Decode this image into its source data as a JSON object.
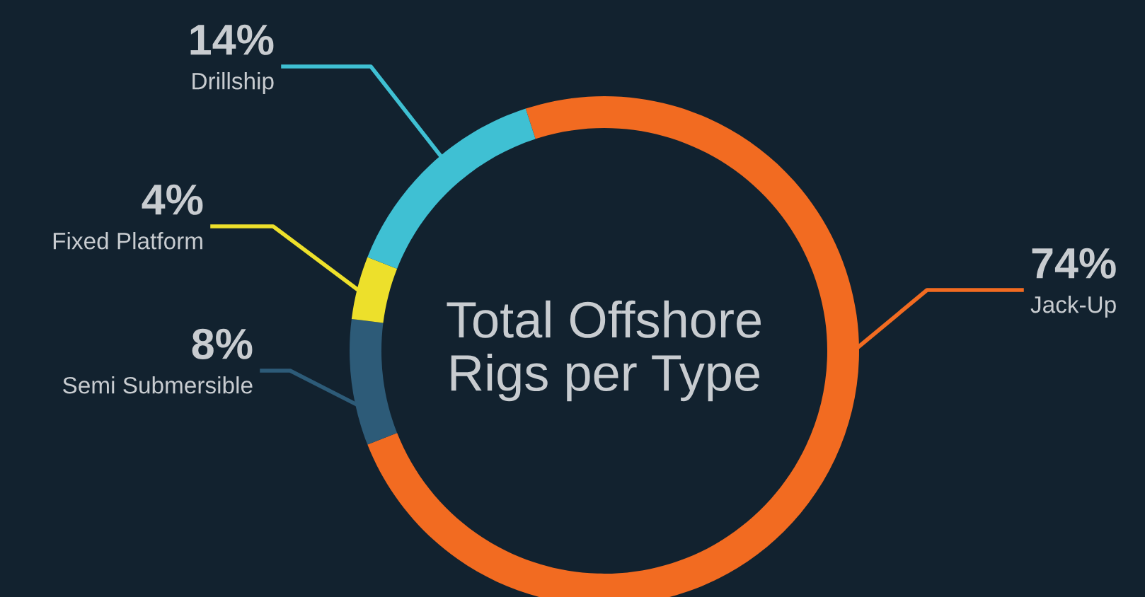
{
  "chart_data": {
    "type": "donut",
    "title": "Total Offshore Rigs per Type",
    "categories": [
      "Jack-Up",
      "Semi Submersible",
      "Fixed Platform",
      "Drillship"
    ],
    "values": [
      74,
      8,
      4,
      14
    ],
    "colors": [
      "#f26b21",
      "#2d5b78",
      "#ede02b",
      "#3fc0d3"
    ],
    "value_labels": [
      "74%",
      "8%",
      "4%",
      "14%"
    ]
  }
}
